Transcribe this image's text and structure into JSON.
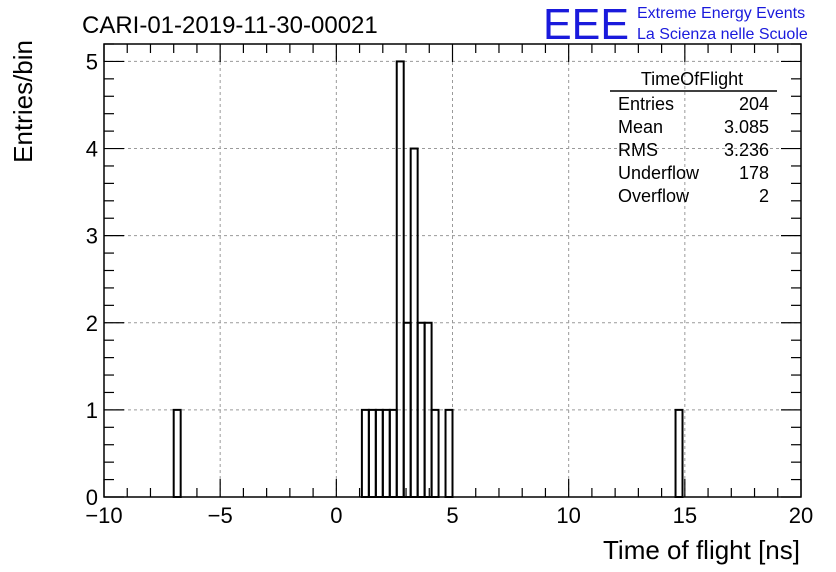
{
  "chart_data": {
    "type": "histogram",
    "title": "CARI-01-2019-11-30-00021",
    "xlabel": "Time of flight [ns]",
    "ylabel": "Entries/bin",
    "xlim": [
      -10,
      20
    ],
    "ylim": [
      0,
      5.2
    ],
    "x_ticks": [
      -10,
      -5,
      0,
      5,
      10,
      15,
      20
    ],
    "x_tick_labels": [
      "−10",
      "−5",
      "0",
      "5",
      "10",
      "15",
      "20"
    ],
    "y_ticks": [
      0,
      1,
      2,
      3,
      4,
      5
    ],
    "y_tick_labels": [
      "0",
      "1",
      "2",
      "3",
      "4",
      "5"
    ],
    "grid": true,
    "bin_width": 0.3,
    "bins": [
      {
        "x_low": -7.0,
        "value": 1
      },
      {
        "x_low": 1.1,
        "value": 1
      },
      {
        "x_low": 1.4,
        "value": 1
      },
      {
        "x_low": 1.7,
        "value": 1
      },
      {
        "x_low": 2.0,
        "value": 1
      },
      {
        "x_low": 2.3,
        "value": 1
      },
      {
        "x_low": 2.6,
        "value": 5
      },
      {
        "x_low": 2.9,
        "value": 2
      },
      {
        "x_low": 3.2,
        "value": 4
      },
      {
        "x_low": 3.5,
        "value": 2
      },
      {
        "x_low": 3.8,
        "value": 2
      },
      {
        "x_low": 4.1,
        "value": 1
      },
      {
        "x_low": 4.7,
        "value": 1
      },
      {
        "x_low": 14.6,
        "value": 1
      }
    ],
    "stats_box": {
      "name": "TimeOfFlight",
      "rows": [
        {
          "label": "Entries",
          "value": "204"
        },
        {
          "label": "Mean",
          "value": "3.085"
        },
        {
          "label": "RMS",
          "value": "3.236"
        },
        {
          "label": "Underflow",
          "value": "178"
        },
        {
          "label": "Overflow",
          "value": "2"
        }
      ]
    }
  },
  "logo": {
    "mark": "EEE",
    "line1": "Extreme Energy Events",
    "line2": "La Scienza nelle Scuole",
    "color": "#1a1adc"
  },
  "colors": {
    "histogram_line": "#000000",
    "grid": "#9a9a9a",
    "frame": "#000000"
  }
}
